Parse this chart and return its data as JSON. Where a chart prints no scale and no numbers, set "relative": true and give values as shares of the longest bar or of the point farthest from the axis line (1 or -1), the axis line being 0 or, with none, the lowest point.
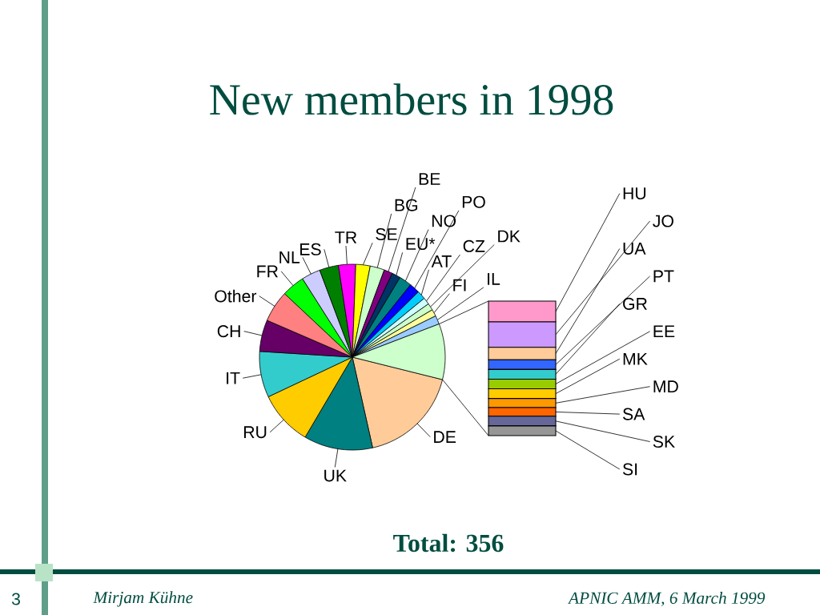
{
  "chart_data": [
    {
      "type": "pie",
      "title": "New members in 1998",
      "categories": [
        "DE",
        "UK",
        "RU",
        "IT",
        "CH",
        "Other",
        "FR",
        "NL",
        "ES",
        "TR",
        "SE",
        "BG",
        "BE",
        "EU*",
        "NO",
        "PO",
        "AT",
        "CZ",
        "DK",
        "FI",
        "IL",
        null
      ],
      "values": [
        17.6,
        12,
        9.5,
        8,
        5.5,
        5.5,
        4,
        3.3,
        3.3,
        3,
        2.5,
        2.5,
        1.5,
        1.5,
        2.2,
        1.8,
        1.5,
        1.2,
        1.2,
        1.2,
        1.5,
        9.7
      ],
      "colors": [
        "#ffcc99",
        "#008080",
        "#ffcc00",
        "#33cccc",
        "#660066",
        "#ff8080",
        "#00ff00",
        "#ccccff",
        "#008000",
        "#ff00ff",
        "#ffff00",
        "#ccffcc",
        "#800080",
        "#003366",
        "#008080",
        "#0000ff",
        "#00ccff",
        "#ccffff",
        "#ccffcc",
        "#ffff99",
        "#99ccff",
        "#ccffcc"
      ],
      "annotations": [
        "Total: 356",
        "Mirjam Kühne",
        "APNIC AMM, 6 March 1999",
        "3"
      ]
    },
    {
      "type": "bar",
      "stacked": true,
      "relative": true,
      "legend": "right",
      "categories": [
        null
      ],
      "series": [
        {
          "name": "SI",
          "color": "#969696",
          "values": [
            0.072
          ]
        },
        {
          "name": "SK",
          "color": "#666699",
          "values": [
            0.072
          ]
        },
        {
          "name": "SA",
          "color": "#ff6600",
          "values": [
            0.064
          ]
        },
        {
          "name": "MD",
          "color": "#ff9900",
          "values": [
            0.068
          ]
        },
        {
          "name": "MK",
          "color": "#ffcc00",
          "values": [
            0.072
          ]
        },
        {
          "name": "EE",
          "color": "#99cc00",
          "values": [
            0.072
          ]
        },
        {
          "name": "GR",
          "color": "#33cccc",
          "values": [
            0.072
          ]
        },
        {
          "name": "PT",
          "color": "#3366ff",
          "values": [
            0.072
          ]
        },
        {
          "name": "UA",
          "color": "#ffcc99",
          "values": [
            0.092
          ]
        },
        {
          "name": "JO",
          "color": "#cc99ff",
          "values": [
            0.189
          ]
        },
        {
          "name": "HU",
          "color": "#ff99cc",
          "values": [
            0.155
          ]
        }
      ]
    }
  ]
}
